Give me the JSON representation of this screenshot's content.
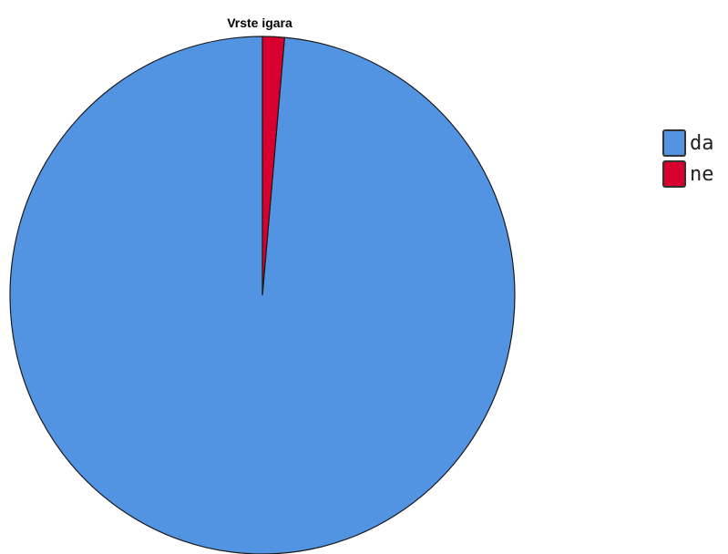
{
  "chart_data": {
    "type": "pie",
    "title": "Vrste igara",
    "categories": [
      "da",
      "ne"
    ],
    "values": [
      98.6,
      1.4
    ],
    "colors": [
      "#5294e2",
      "#d8002e"
    ],
    "legend_position": "right"
  }
}
